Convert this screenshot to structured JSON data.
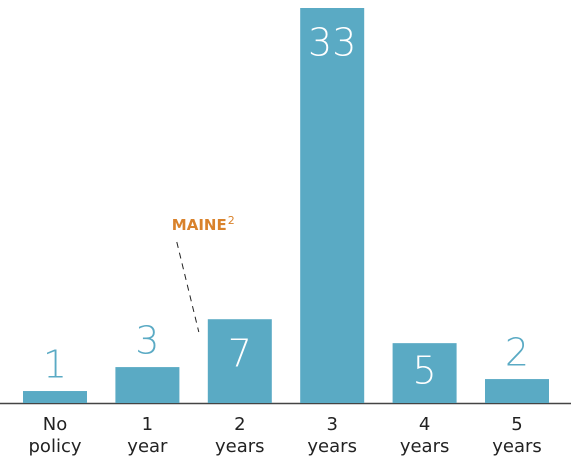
{
  "chart_data": {
    "type": "bar",
    "categories": [
      "No policy",
      "1 year",
      "2 years",
      "3 years",
      "4 years",
      "5 years"
    ],
    "values": [
      1,
      3,
      7,
      33,
      5,
      2
    ],
    "color": "#5aaac4",
    "annotation": {
      "text": "MAINE",
      "superscript": "2",
      "color": "#d9822b",
      "category_index": 2
    }
  }
}
